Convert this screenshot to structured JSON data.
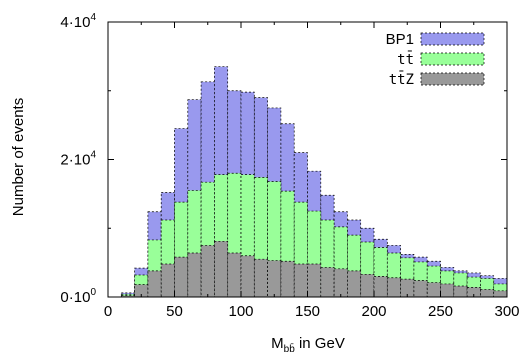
{
  "chart_data": {
    "type": "bar",
    "stacked": false,
    "overlay": true,
    "xlabel": "M",
    "xlabel_sub": "bb̄",
    "xlabel_suffix": " in GeV",
    "ylabel": "Number of events",
    "xlim": [
      0,
      300
    ],
    "ylim": [
      0,
      40000
    ],
    "x_ticks": [
      0,
      50,
      100,
      150,
      200,
      250,
      300
    ],
    "y_ticks": [
      {
        "value": 0,
        "mantissa": "0·10",
        "exp": "0"
      },
      {
        "value": 20000,
        "mantissa": "2·10",
        "exp": "4"
      },
      {
        "value": 40000,
        "mantissa": "4·10",
        "exp": "4"
      }
    ],
    "bin_width": 10,
    "bin_starts": [
      10,
      20,
      30,
      40,
      50,
      60,
      70,
      80,
      90,
      100,
      110,
      120,
      130,
      140,
      150,
      160,
      170,
      180,
      190,
      200,
      210,
      220,
      230,
      240,
      250,
      260,
      270,
      280,
      290
    ],
    "legend_position": "top-right",
    "series": [
      {
        "name": "BP1",
        "color": "#9999ee",
        "values": [
          600,
          4200,
          12400,
          15200,
          24500,
          28700,
          31300,
          33500,
          30000,
          29800,
          29000,
          27500,
          25200,
          21000,
          18300,
          14800,
          12400,
          11200,
          10000,
          8400,
          7500,
          6200,
          5800,
          5200,
          4300,
          3800,
          3500,
          3100,
          2700
        ]
      },
      {
        "name": "tt̄",
        "color": "#99ff99",
        "values": [
          400,
          3200,
          8300,
          11200,
          13800,
          15500,
          16700,
          17800,
          18000,
          17800,
          17400,
          16800,
          15400,
          13800,
          12500,
          11200,
          10200,
          9000,
          8000,
          7200,
          6400,
          5700,
          5100,
          4500,
          3800,
          3500,
          2900,
          2700,
          1900
        ]
      },
      {
        "name": "tt̄Z",
        "color": "#999999",
        "values": [
          200,
          1800,
          3800,
          4800,
          5800,
          6400,
          7500,
          8100,
          6400,
          6000,
          5500,
          5300,
          5200,
          4800,
          4800,
          4300,
          4100,
          3800,
          3300,
          3000,
          2800,
          2600,
          2400,
          2100,
          1900,
          1600,
          1400,
          1100,
          900
        ]
      }
    ]
  }
}
